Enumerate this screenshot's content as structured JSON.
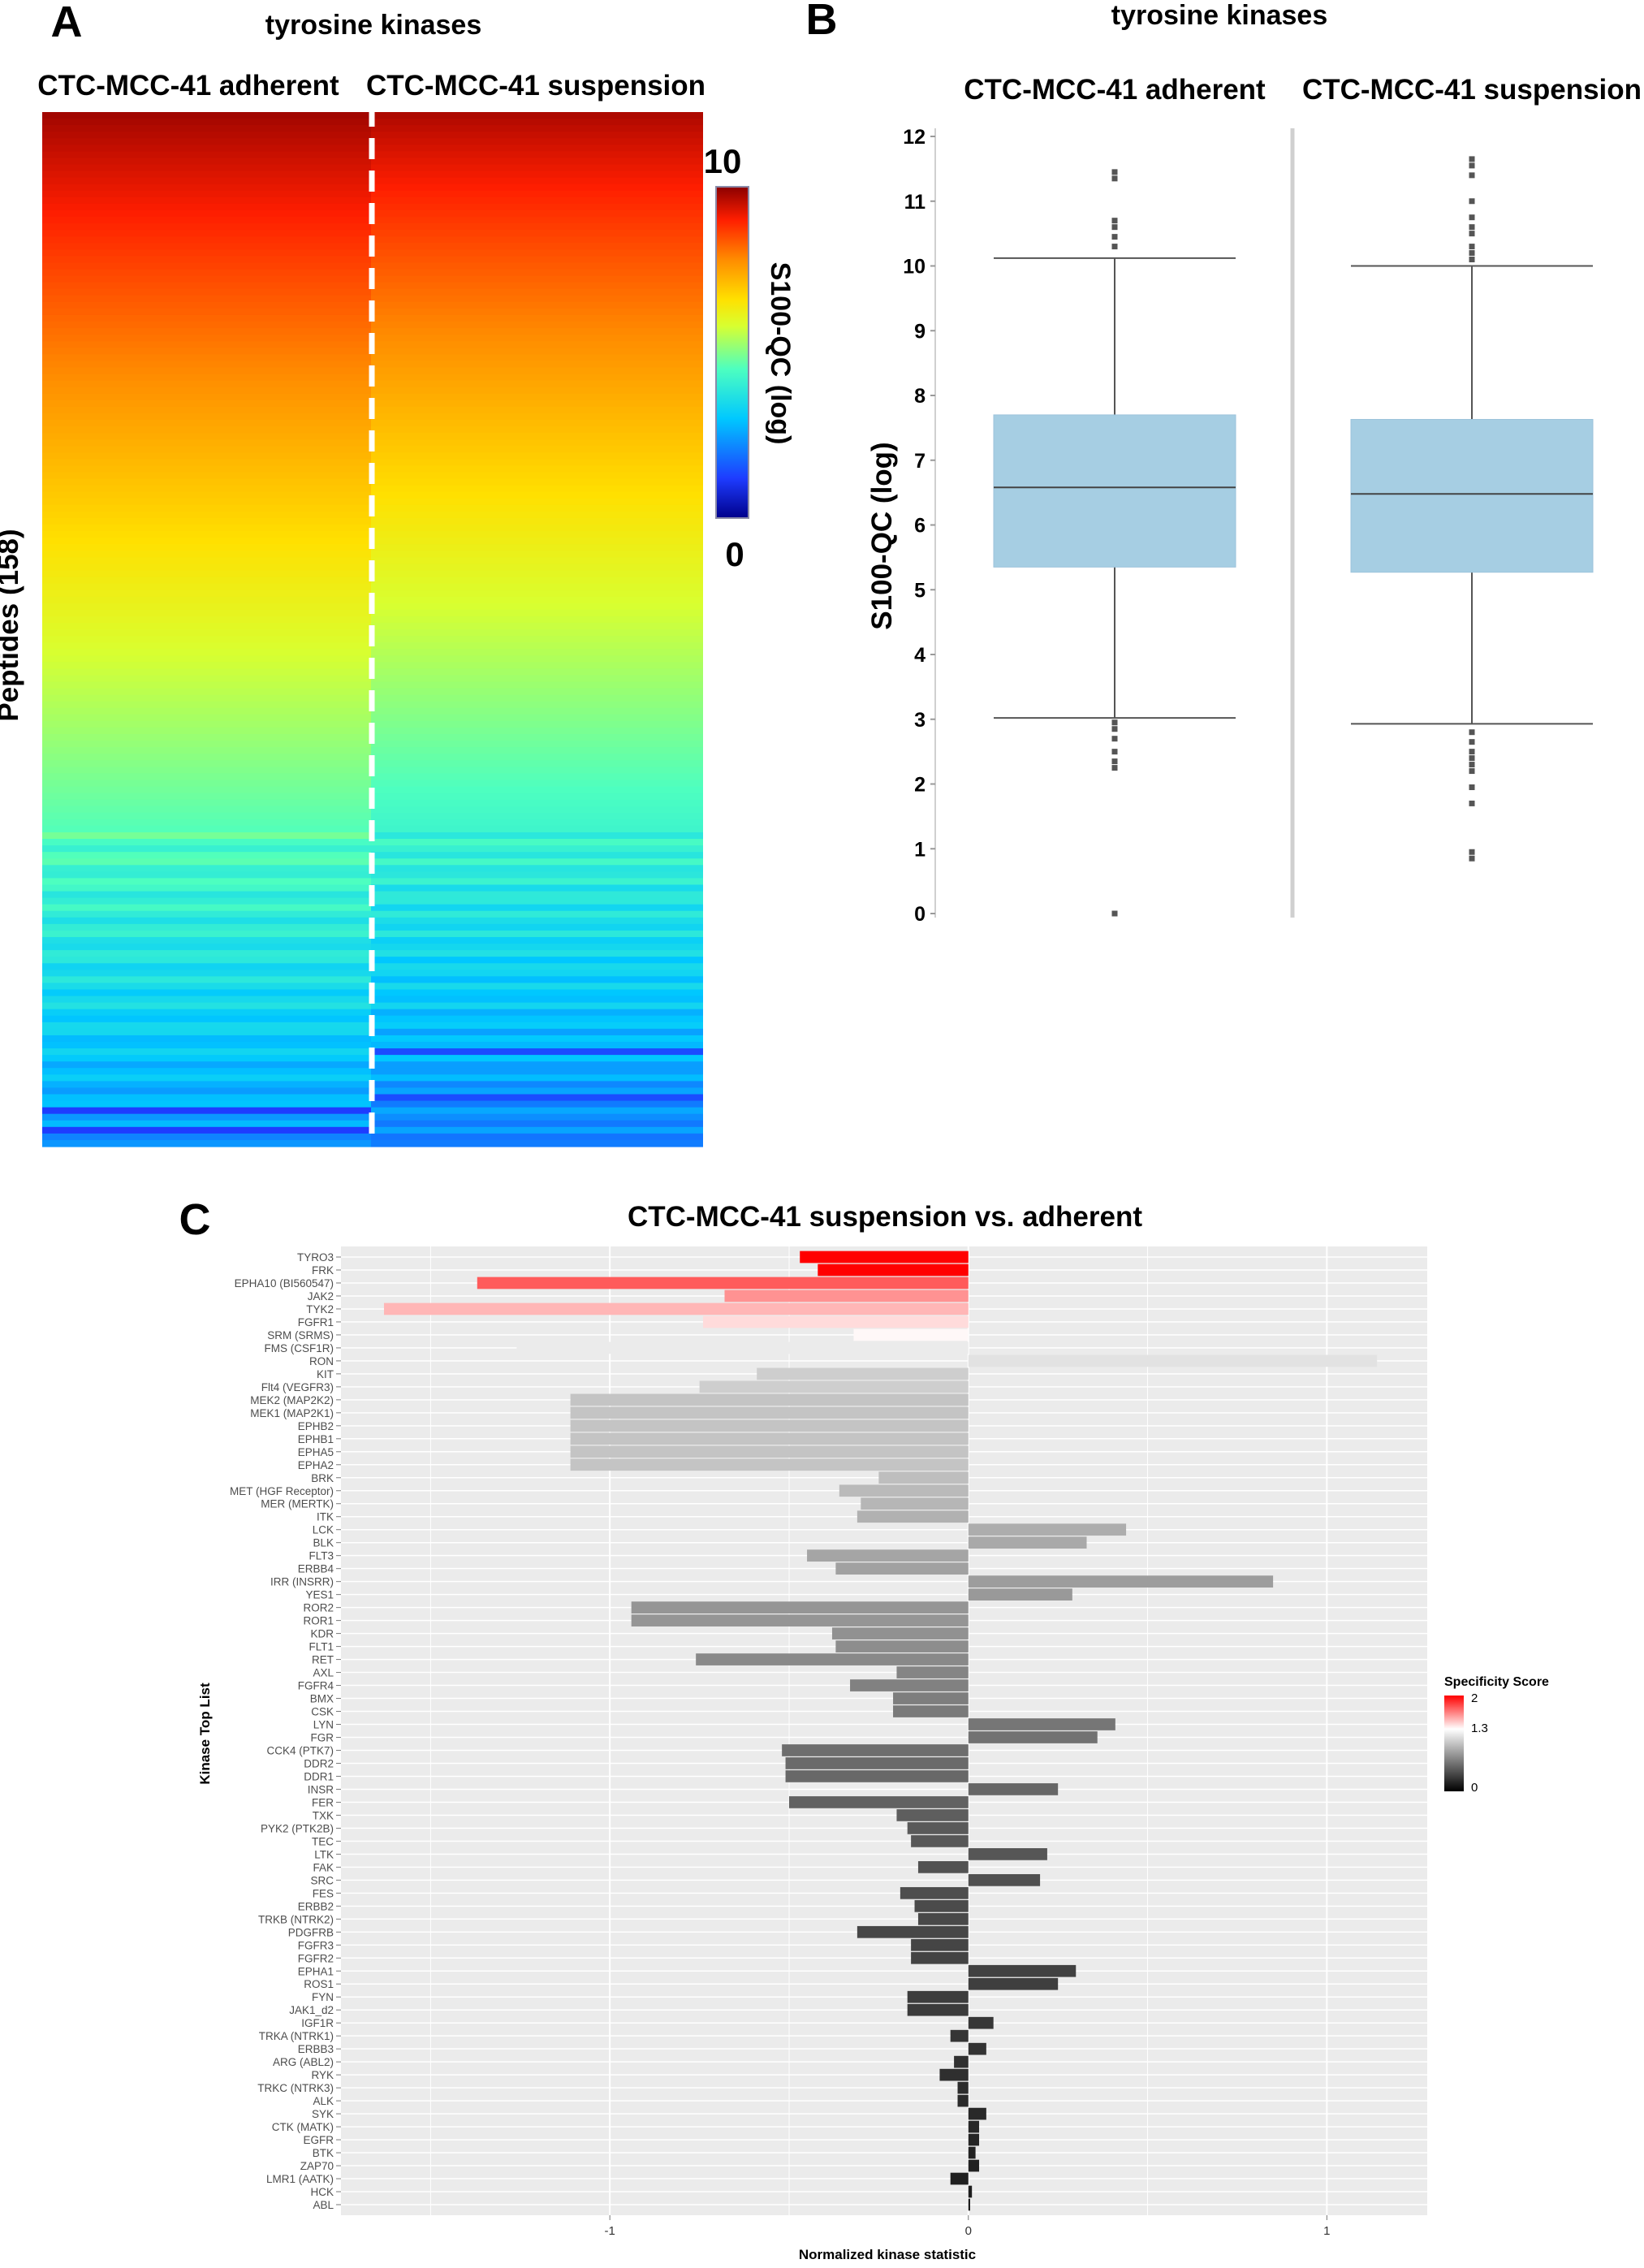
{
  "panels": {
    "A": "A",
    "B": "B",
    "C": "C"
  },
  "colors": {
    "box_fill": "#a6cee3",
    "specificity_high": "#ff0000",
    "specificity_mid": "#ffffff",
    "specificity_low": "#000000",
    "panel_bg": "#ebebeb"
  },
  "chart_data": [
    {
      "type": "heatmap",
      "title": "tyrosine kinases",
      "columns": [
        "CTC-MCC-41 adherent",
        "CTC-MCC-41 suspension"
      ],
      "ylabel": "Peptides (158)",
      "colorbar": {
        "label": "S100-QC (log)",
        "max_label": "10",
        "min_label": "0",
        "range": [
          0,
          10
        ]
      },
      "n_rows": 158,
      "note": "rows sorted descending; values read from colour"
    },
    {
      "type": "box",
      "title": "tyrosine kinases",
      "ylabel": "S100-QC (log)",
      "ylim": [
        0,
        12
      ],
      "yticks": [
        "0",
        "1",
        "2",
        "3",
        "4",
        "5",
        "6",
        "7",
        "8",
        "9",
        "10",
        "11",
        "12"
      ],
      "categories": [
        "CTC-MCC-41 adherent",
        "CTC-MCC-41 suspension"
      ],
      "boxes": [
        {
          "name": "CTC-MCC-41 adherent",
          "whisker_low": 3.02,
          "q1": 5.35,
          "median": 6.58,
          "q3": 7.7,
          "whisker_high": 10.12,
          "outliers": [
            11.45,
            11.35,
            10.7,
            10.6,
            10.45,
            10.3,
            2.95,
            2.85,
            2.7,
            2.5,
            2.35,
            2.25,
            0.0
          ]
        },
        {
          "name": "CTC-MCC-41 suspension",
          "whisker_low": 2.93,
          "q1": 5.27,
          "median": 6.48,
          "q3": 7.63,
          "whisker_high": 10.0,
          "outliers": [
            11.65,
            11.55,
            11.4,
            11.0,
            10.75,
            10.6,
            10.5,
            10.3,
            10.2,
            10.1,
            2.8,
            2.65,
            2.5,
            2.4,
            2.3,
            2.2,
            1.95,
            1.7,
            0.95,
            0.85
          ]
        }
      ]
    },
    {
      "type": "bar",
      "orientation": "horizontal",
      "title": "CTC-MCC-41 suspension vs. adherent",
      "xlabel": "Normalized kinase statistic",
      "ylabel": "Kinase Top List",
      "xlim": [
        -1.75,
        1.28
      ],
      "xticks": [
        "-1",
        "0",
        "1"
      ],
      "legend": {
        "title": "Specificity Score",
        "labels": [
          "2",
          "1.3",
          "0"
        ],
        "range": [
          0,
          2
        ],
        "position": "right"
      },
      "kinases": [
        {
          "name": "TYRO3",
          "value": -0.47,
          "score": 2.0
        },
        {
          "name": "FRK",
          "value": -0.42,
          "score": 2.0
        },
        {
          "name": "EPHA10 (BI560547)",
          "value": -1.37,
          "score": 1.75
        },
        {
          "name": "JAK2",
          "value": -0.68,
          "score": 1.6
        },
        {
          "name": "TYK2",
          "value": -1.63,
          "score": 1.5
        },
        {
          "name": "FGFR1",
          "value": -0.74,
          "score": 1.4
        },
        {
          "name": "SRM (SRMS)",
          "value": -0.32,
          "score": 1.32
        },
        {
          "name": "FMS (CSF1R)",
          "value": -1.26,
          "score": 1.2
        },
        {
          "name": "RON",
          "value": 1.14,
          "score": 1.15
        },
        {
          "name": "KIT",
          "value": -0.59,
          "score": 1.05
        },
        {
          "name": "Flt4 (VEGFR3)",
          "value": -0.75,
          "score": 1.05
        },
        {
          "name": "MEK2 (MAP2K2)",
          "value": -1.11,
          "score": 1.0
        },
        {
          "name": "MEK1 (MAP2K1)",
          "value": -1.11,
          "score": 1.0
        },
        {
          "name": "EPHB2",
          "value": -1.11,
          "score": 1.0
        },
        {
          "name": "EPHB1",
          "value": -1.11,
          "score": 1.0
        },
        {
          "name": "EPHA5",
          "value": -1.11,
          "score": 1.0
        },
        {
          "name": "EPHA2",
          "value": -1.11,
          "score": 1.0
        },
        {
          "name": "BRK",
          "value": -0.25,
          "score": 0.97
        },
        {
          "name": "MET (HGF Receptor)",
          "value": -0.36,
          "score": 0.95
        },
        {
          "name": "MER (MERTK)",
          "value": -0.3,
          "score": 0.93
        },
        {
          "name": "ITK",
          "value": -0.31,
          "score": 0.9
        },
        {
          "name": "LCK",
          "value": 0.44,
          "score": 0.88
        },
        {
          "name": "BLK",
          "value": 0.33,
          "score": 0.86
        },
        {
          "name": "FLT3",
          "value": -0.45,
          "score": 0.84
        },
        {
          "name": "ERBB4",
          "value": -0.37,
          "score": 0.82
        },
        {
          "name": "IRR (INSRR)",
          "value": 0.85,
          "score": 0.8
        },
        {
          "name": "YES1",
          "value": 0.29,
          "score": 0.78
        },
        {
          "name": "ROR2",
          "value": -0.94,
          "score": 0.76
        },
        {
          "name": "ROR1",
          "value": -0.94,
          "score": 0.76
        },
        {
          "name": "KDR",
          "value": -0.38,
          "score": 0.74
        },
        {
          "name": "FLT1",
          "value": -0.37,
          "score": 0.72
        },
        {
          "name": "RET",
          "value": -0.76,
          "score": 0.7
        },
        {
          "name": "AXL",
          "value": -0.2,
          "score": 0.68
        },
        {
          "name": "FGFR4",
          "value": -0.33,
          "score": 0.66
        },
        {
          "name": "BMX",
          "value": -0.21,
          "score": 0.64
        },
        {
          "name": "CSK",
          "value": -0.21,
          "score": 0.62
        },
        {
          "name": "LYN",
          "value": 0.41,
          "score": 0.6
        },
        {
          "name": "FGR",
          "value": 0.36,
          "score": 0.58
        },
        {
          "name": "CCK4 (PTK7)",
          "value": -0.52,
          "score": 0.56
        },
        {
          "name": "DDR2",
          "value": -0.51,
          "score": 0.54
        },
        {
          "name": "DDR1",
          "value": -0.51,
          "score": 0.53
        },
        {
          "name": "INSR",
          "value": 0.25,
          "score": 0.52
        },
        {
          "name": "FER",
          "value": -0.5,
          "score": 0.5
        },
        {
          "name": "TXK",
          "value": -0.2,
          "score": 0.48
        },
        {
          "name": "PYK2 (PTK2B)",
          "value": -0.17,
          "score": 0.46
        },
        {
          "name": "TEC",
          "value": -0.16,
          "score": 0.45
        },
        {
          "name": "LTK",
          "value": 0.22,
          "score": 0.44
        },
        {
          "name": "FAK",
          "value": -0.14,
          "score": 0.42
        },
        {
          "name": "SRC",
          "value": 0.2,
          "score": 0.41
        },
        {
          "name": "FES",
          "value": -0.19,
          "score": 0.4
        },
        {
          "name": "ERBB2",
          "value": -0.15,
          "score": 0.38
        },
        {
          "name": "TRKB (NTRK2)",
          "value": -0.14,
          "score": 0.37
        },
        {
          "name": "PDGFRB",
          "value": -0.31,
          "score": 0.36
        },
        {
          "name": "FGFR3",
          "value": -0.16,
          "score": 0.35
        },
        {
          "name": "FGFR2",
          "value": -0.16,
          "score": 0.34
        },
        {
          "name": "EPHA1",
          "value": 0.3,
          "score": 0.33
        },
        {
          "name": "ROS1",
          "value": 0.25,
          "score": 0.32
        },
        {
          "name": "FYN",
          "value": -0.17,
          "score": 0.31
        },
        {
          "name": "JAK1_d2",
          "value": -0.17,
          "score": 0.3
        },
        {
          "name": "IGF1R",
          "value": 0.07,
          "score": 0.28
        },
        {
          "name": "TRKA (NTRK1)",
          "value": -0.05,
          "score": 0.27
        },
        {
          "name": "ERBB3",
          "value": 0.05,
          "score": 0.26
        },
        {
          "name": "ARG (ABL2)",
          "value": -0.04,
          "score": 0.25
        },
        {
          "name": "RYK",
          "value": -0.08,
          "score": 0.24
        },
        {
          "name": "TRKC (NTRK3)",
          "value": -0.03,
          "score": 0.23
        },
        {
          "name": "ALK",
          "value": -0.03,
          "score": 0.22
        },
        {
          "name": "SYK",
          "value": 0.05,
          "score": 0.21
        },
        {
          "name": "CTK (MATK)",
          "value": 0.03,
          "score": 0.2
        },
        {
          "name": "EGFR",
          "value": 0.03,
          "score": 0.19
        },
        {
          "name": "BTK",
          "value": 0.02,
          "score": 0.18
        },
        {
          "name": "ZAP70",
          "value": 0.03,
          "score": 0.17
        },
        {
          "name": "LMR1 (AATK)",
          "value": -0.05,
          "score": 0.16
        },
        {
          "name": "HCK",
          "value": 0.01,
          "score": 0.15
        },
        {
          "name": "ABL",
          "value": 0.005,
          "score": 0.14
        }
      ]
    }
  ]
}
